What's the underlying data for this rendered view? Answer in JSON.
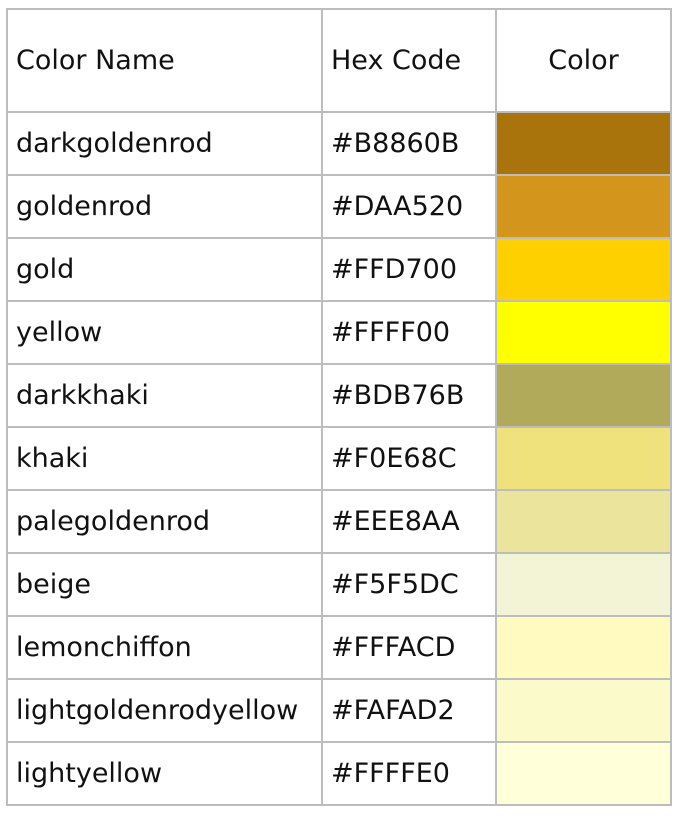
{
  "table": {
    "headers": {
      "name": "Color Name",
      "hex": "Hex Code",
      "color": "Color"
    },
    "rows": [
      {
        "name": "darkgoldenrod",
        "hex": "#B8860B",
        "swatch": "#A8740B"
      },
      {
        "name": "goldenrod",
        "hex": "#DAA520",
        "swatch": "#D3951C"
      },
      {
        "name": "gold",
        "hex": "#FFD700",
        "swatch": "#FFD000"
      },
      {
        "name": "yellow",
        "hex": "#FFFF00",
        "swatch": "#FFFF00"
      },
      {
        "name": "darkkhaki",
        "hex": "#BDB76B",
        "swatch": "#B0AA5A"
      },
      {
        "name": "khaki",
        "hex": "#F0E68C",
        "swatch": "#EFE27D"
      },
      {
        "name": "palegoldenrod",
        "hex": "#EEE8AA",
        "swatch": "#EAE49C"
      },
      {
        "name": "beige",
        "hex": "#F5F5DC",
        "swatch": "#F3F3D6"
      },
      {
        "name": "lemonchiffon",
        "hex": "#FFFACD",
        "swatch": "#FFFABF"
      },
      {
        "name": "lightgoldenrodyellow",
        "hex": "#FAFAD2",
        "swatch": "#FAFACA"
      },
      {
        "name": "lightyellow",
        "hex": "#FFFFE0",
        "swatch": "#FFFFDA"
      }
    ]
  }
}
